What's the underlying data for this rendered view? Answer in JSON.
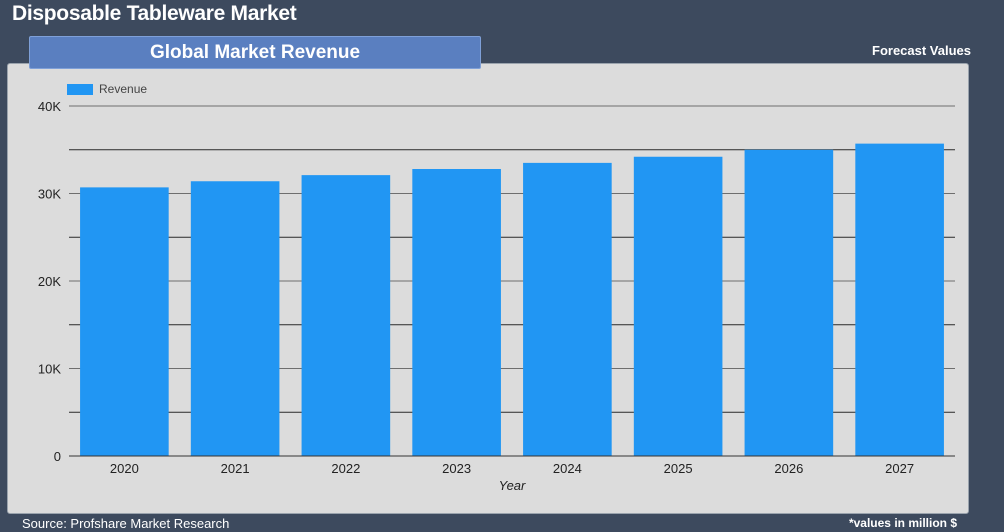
{
  "header": {
    "title": "Disposable Tableware Market",
    "subtitle": "Global Market Revenue",
    "forecast_label": "Forecast Values"
  },
  "footer": {
    "source": "Source: Profshare Market Research",
    "units": "*values in million $"
  },
  "colors": {
    "background": "#3d4a5e",
    "panel": "#dcdcdc",
    "bar": "#2196f3",
    "banner": "#5a7fc0"
  },
  "chart_data": {
    "type": "bar",
    "title": "Global Market Revenue",
    "xlabel": "Year",
    "ylabel": "",
    "categories": [
      "2020",
      "2021",
      "2022",
      "2023",
      "2024",
      "2025",
      "2026",
      "2027"
    ],
    "series": [
      {
        "name": "Revenue",
        "values": [
          30700,
          31400,
          32100,
          32800,
          33500,
          34200,
          35000,
          35700
        ]
      }
    ],
    "ylim": [
      0,
      40000
    ],
    "yticks": [
      0,
      10000,
      20000,
      30000,
      40000
    ],
    "ytick_labels": [
      "0",
      "10K",
      "20K",
      "30K",
      "40K"
    ],
    "grid": true,
    "legend": "top-left"
  }
}
